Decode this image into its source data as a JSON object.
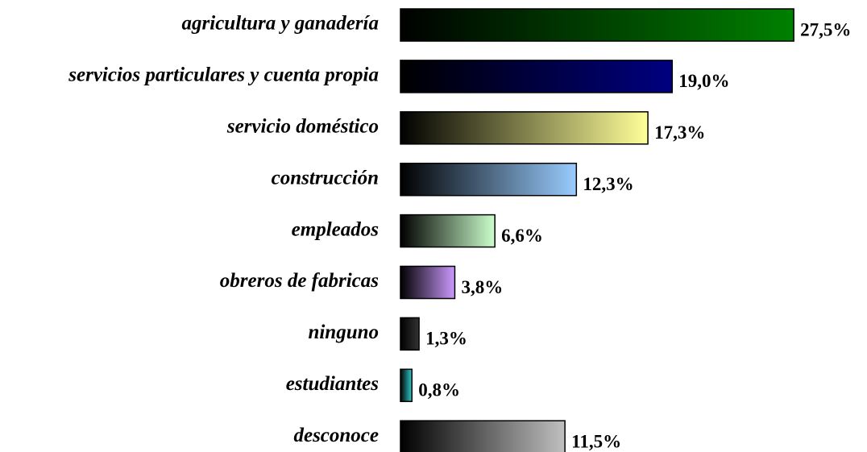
{
  "chart_data": {
    "type": "hbar",
    "categories": [
      "agricultura y ganadería",
      "servicios particulares y cuenta propia",
      "servicio doméstico",
      "construcción",
      "empleados",
      "obreros de fabricas",
      "ninguno",
      "estudiantes",
      "desconoce"
    ],
    "values": [
      27.5,
      19.0,
      17.3,
      12.3,
      6.6,
      3.8,
      1.3,
      0.8,
      11.5
    ],
    "value_labels": [
      "27,5%",
      "19,0%",
      "17,3%",
      "12,3%",
      "6,6%",
      "3,8%",
      "1,3%",
      "0,8%",
      "11,5%"
    ],
    "colors": [
      "#008000",
      "#000080",
      "#ffff99",
      "#99ccff",
      "#ccffcc",
      "#cc99ff",
      "#333333",
      "#33cccc",
      "#c0c0c0"
    ]
  }
}
